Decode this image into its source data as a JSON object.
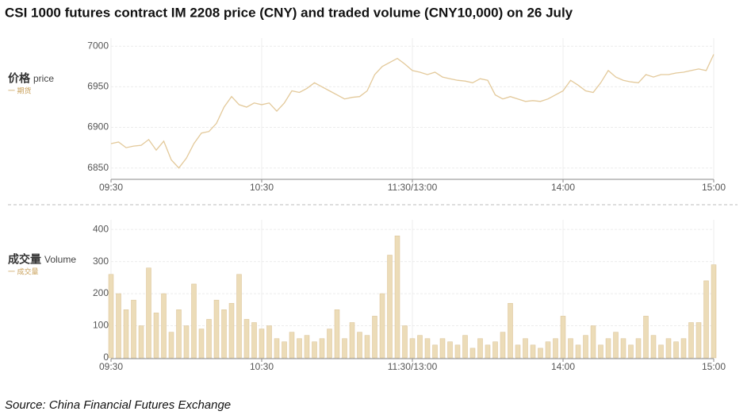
{
  "title": "CSI 1000 futures contract IM 2208 price (CNY) and traded volume (CNY10,000) on 26 July",
  "source": "Source: China Financial Futures Exchange",
  "chart_data": [
    {
      "type": "line",
      "y_label_main": "价格",
      "y_label_sub": "price",
      "legend": "一 期货",
      "color": "#e3c99a",
      "x": [
        0,
        3,
        6,
        9,
        12,
        15,
        18,
        21,
        24,
        27,
        30,
        33,
        36,
        39,
        42,
        45,
        48,
        51,
        54,
        57,
        60,
        63,
        66,
        69,
        72,
        75,
        78,
        81,
        84,
        87,
        90,
        93,
        96,
        99,
        102,
        105,
        108,
        111,
        114,
        117,
        120,
        123,
        126,
        129,
        132,
        135,
        138,
        141,
        144,
        147,
        150,
        153,
        156,
        159,
        162,
        165,
        168,
        171,
        174,
        177,
        180,
        183,
        186,
        189,
        192,
        195,
        198,
        201,
        204,
        207,
        210,
        213,
        216,
        219,
        222,
        225,
        228,
        231,
        234,
        237,
        240
      ],
      "values": [
        6880,
        6882,
        6875,
        6877,
        6878,
        6885,
        6872,
        6883,
        6860,
        6850,
        6862,
        6880,
        6893,
        6895,
        6905,
        6925,
        6938,
        6928,
        6925,
        6930,
        6928,
        6930,
        6920,
        6930,
        6945,
        6943,
        6948,
        6955,
        6950,
        6945,
        6940,
        6935,
        6937,
        6938,
        6945,
        6965,
        6975,
        6980,
        6985,
        6978,
        6970,
        6968,
        6965,
        6968,
        6962,
        6960,
        6958,
        6957,
        6955,
        6960,
        6958,
        6940,
        6935,
        6938,
        6935,
        6932,
        6933,
        6932,
        6935,
        6940,
        6945,
        6958,
        6952,
        6945,
        6943,
        6955,
        6970,
        6962,
        6958,
        6956,
        6955,
        6965,
        6962,
        6965,
        6965,
        6967,
        6968,
        6970,
        6972,
        6970,
        6990
      ],
      "xlim": [
        0,
        240
      ],
      "xticks": [
        {
          "value": 0,
          "label": "09:30"
        },
        {
          "value": 60,
          "label": "10:30"
        },
        {
          "value": 120,
          "label": "11:30/13:00"
        },
        {
          "value": 180,
          "label": "14:00"
        },
        {
          "value": 240,
          "label": "15:00"
        }
      ],
      "ylim": [
        6837,
        7010
      ],
      "yticks": [
        6850,
        6900,
        6950,
        7000
      ],
      "grid": true
    },
    {
      "type": "bar",
      "y_label_main": "成交量",
      "y_label_sub": "Volume",
      "legend": "一 成交量",
      "color": "#ecdcb8",
      "x": [
        0,
        3,
        6,
        9,
        12,
        15,
        18,
        21,
        24,
        27,
        30,
        33,
        36,
        39,
        42,
        45,
        48,
        51,
        54,
        57,
        60,
        63,
        66,
        69,
        72,
        75,
        78,
        81,
        84,
        87,
        90,
        93,
        96,
        99,
        102,
        105,
        108,
        111,
        114,
        117,
        120,
        123,
        126,
        129,
        132,
        135,
        138,
        141,
        144,
        147,
        150,
        153,
        156,
        159,
        162,
        165,
        168,
        171,
        174,
        177,
        180,
        183,
        186,
        189,
        192,
        195,
        198,
        201,
        204,
        207,
        210,
        213,
        216,
        219,
        222,
        225,
        228,
        231,
        234,
        237,
        240
      ],
      "values": [
        260,
        200,
        150,
        180,
        100,
        280,
        140,
        200,
        80,
        150,
        100,
        230,
        90,
        120,
        180,
        150,
        170,
        260,
        120,
        110,
        90,
        100,
        60,
        50,
        80,
        60,
        70,
        50,
        60,
        90,
        150,
        60,
        110,
        80,
        70,
        130,
        200,
        320,
        380,
        100,
        60,
        70,
        60,
        40,
        60,
        50,
        40,
        70,
        30,
        60,
        40,
        50,
        80,
        170,
        40,
        60,
        40,
        30,
        50,
        60,
        130,
        60,
        40,
        70,
        100,
        40,
        60,
        80,
        60,
        40,
        60,
        130,
        70,
        40,
        60,
        50,
        60,
        110,
        110,
        240,
        290
      ],
      "xlim": [
        0,
        240
      ],
      "xticks": [
        {
          "value": 0,
          "label": "09:30"
        },
        {
          "value": 60,
          "label": "10:30"
        },
        {
          "value": 120,
          "label": "11:30/13:00"
        },
        {
          "value": 180,
          "label": "14:00"
        },
        {
          "value": 240,
          "label": "15:00"
        }
      ],
      "ylim": [
        0,
        430
      ],
      "yticks": [
        0,
        100,
        200,
        300,
        400
      ],
      "grid": true
    }
  ]
}
